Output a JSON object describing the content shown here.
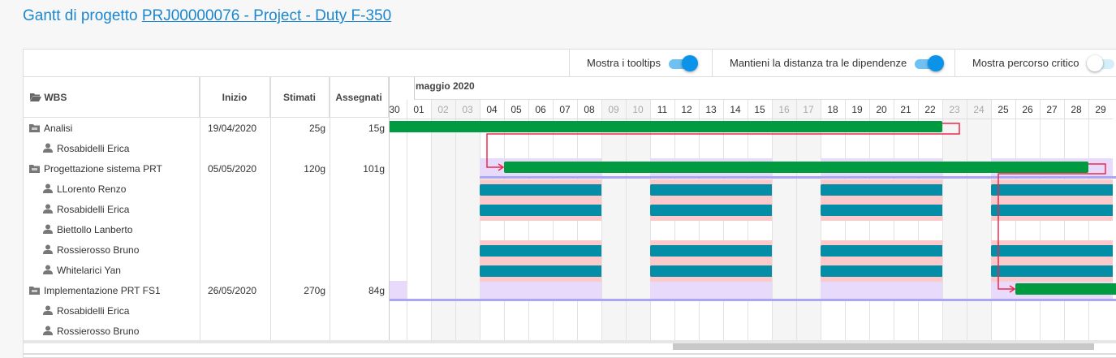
{
  "header": {
    "title_prefix": "Gantt di progetto ",
    "project_link": "PRJ00000076 - Project - Duty F-350"
  },
  "toolbar": {
    "toggles": [
      {
        "label": "Mostra i tooltips",
        "on": true
      },
      {
        "label": "Mantieni la distanza tra le dipendenze",
        "on": true
      },
      {
        "label": "Mostra percorso critico",
        "on": false
      }
    ]
  },
  "table": {
    "columns": {
      "wbs": "WBS",
      "start": "Inizio",
      "estimated": "Stimati",
      "assigned": "Assegnati"
    },
    "rows": [
      {
        "type": "task",
        "name": "Analisi",
        "start": "19/04/2020",
        "estimated": "25g",
        "assigned": "15g"
      },
      {
        "type": "resource",
        "name": "Rosabidelli Erica"
      },
      {
        "type": "task",
        "name": "Progettazione sistema PRT",
        "start": "05/05/2020",
        "estimated": "120g",
        "assigned": "101g"
      },
      {
        "type": "resource",
        "name": "LLorento Renzo"
      },
      {
        "type": "resource",
        "name": "Rosabidelli Erica"
      },
      {
        "type": "resource",
        "name": "Biettollo Lanberto"
      },
      {
        "type": "resource",
        "name": "Rossierosso Bruno"
      },
      {
        "type": "resource",
        "name": "Whitelarici Yan"
      },
      {
        "type": "task",
        "name": "Implementazione PRT FS1",
        "start": "26/05/2020",
        "estimated": "270g",
        "assigned": "84g"
      },
      {
        "type": "resource",
        "name": "Rosabidelli Erica"
      },
      {
        "type": "resource",
        "name": "Rossierosso Bruno"
      }
    ]
  },
  "gantt": {
    "month": "maggio 2020",
    "days": [
      {
        "d": "30",
        "we": false
      },
      {
        "d": "01",
        "we": false
      },
      {
        "d": "02",
        "we": true
      },
      {
        "d": "03",
        "we": true
      },
      {
        "d": "04",
        "we": false
      },
      {
        "d": "05",
        "we": false
      },
      {
        "d": "06",
        "we": false
      },
      {
        "d": "07",
        "we": false
      },
      {
        "d": "08",
        "we": false
      },
      {
        "d": "09",
        "we": true
      },
      {
        "d": "10",
        "we": true
      },
      {
        "d": "11",
        "we": false
      },
      {
        "d": "12",
        "we": false
      },
      {
        "d": "13",
        "we": false
      },
      {
        "d": "14",
        "we": false
      },
      {
        "d": "15",
        "we": false
      },
      {
        "d": "16",
        "we": true
      },
      {
        "d": "17",
        "we": true
      },
      {
        "d": "18",
        "we": false
      },
      {
        "d": "19",
        "we": false
      },
      {
        "d": "20",
        "we": false
      },
      {
        "d": "21",
        "we": false
      },
      {
        "d": "22",
        "we": false
      },
      {
        "d": "23",
        "we": true
      },
      {
        "d": "24",
        "we": true
      },
      {
        "d": "25",
        "we": false
      },
      {
        "d": "26",
        "we": false
      },
      {
        "d": "27",
        "we": false
      },
      {
        "d": "28",
        "we": false
      },
      {
        "d": "29",
        "we": false
      }
    ],
    "task_bars": [
      {
        "row": 0,
        "from": "before",
        "to": "22"
      },
      {
        "row": 2,
        "from": "05",
        "to": "28"
      },
      {
        "row": 8,
        "from": "26",
        "to": "after"
      }
    ],
    "allocated_rows": [
      3,
      4,
      6,
      7
    ],
    "allocation_from": "04",
    "colors": {
      "task": "#009a40",
      "resource": "#038da6",
      "dependency": "#f0284a",
      "workload": "#fccacb",
      "phase": "#e8dafa",
      "baseline": "#a8a6f5"
    }
  }
}
